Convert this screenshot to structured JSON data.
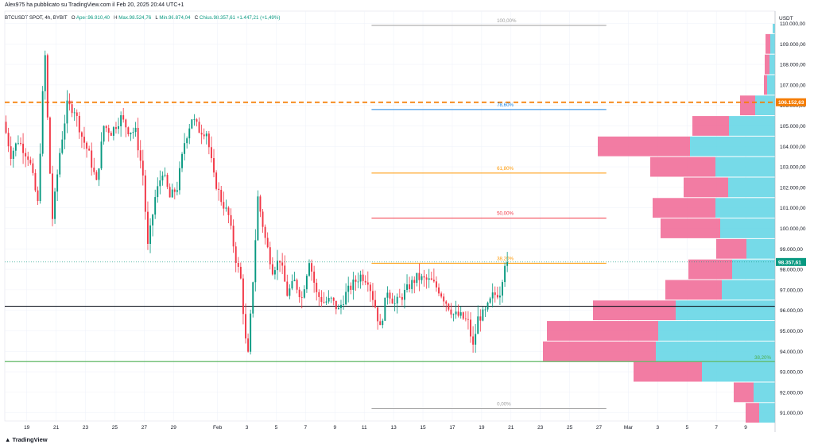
{
  "header": {
    "publisher": "Alex975 ha pubblicato su TradingView.com il Feb 20, 2025 20:44 UTC+1",
    "symbol": "BTCUSDT SPOT, 4h, BYBIT",
    "open_label": "O",
    "open": "Aper.96.910,40",
    "high_label": "H",
    "high": "Max.98.524,76",
    "low_label": "L",
    "low": "Min.96.874,04",
    "close_label": "C",
    "close": "Chius.98.357,61",
    "change": "+1.447,21 (+1,49%)"
  },
  "branding": "TradingView",
  "currency": "USDT",
  "colors": {
    "up": "#089981",
    "down": "#f23645",
    "vp_up": "#5ed3e4",
    "vp_down": "#f06593",
    "resistance": "#f57c00",
    "support": "#131722",
    "fib_green": "#4caf50"
  },
  "chart_data": {
    "type": "candlestick",
    "symbol": "BTCUSDT",
    "timeframe": "4h",
    "ylim": [
      90600,
      110600
    ],
    "y_ticks": [
      "91.000,00",
      "92.000,00",
      "93.000,00",
      "94.000,00",
      "95.000,00",
      "96.000,00",
      "97.000,00",
      "98.000,00",
      "99.000,00",
      "100.000,00",
      "101.000,00",
      "102.000,00",
      "103.000,00",
      "104.000,00",
      "105.000,00",
      "106.000,00",
      "107.000,00",
      "108.000,00",
      "109.000,00",
      "110.000,00"
    ],
    "y_tick_values": [
      91000,
      92000,
      93000,
      94000,
      95000,
      96000,
      97000,
      98000,
      99000,
      100000,
      101000,
      102000,
      103000,
      104000,
      105000,
      106000,
      107000,
      108000,
      109000,
      110000
    ],
    "x_ticks": [
      {
        "label": "19",
        "date": "2025-01-19"
      },
      {
        "label": "21",
        "date": "2025-01-21"
      },
      {
        "label": "23",
        "date": "2025-01-23"
      },
      {
        "label": "25",
        "date": "2025-01-25"
      },
      {
        "label": "27",
        "date": "2025-01-27"
      },
      {
        "label": "29",
        "date": "2025-01-29"
      },
      {
        "label": "Feb",
        "date": "2025-02-01"
      },
      {
        "label": "3",
        "date": "2025-02-03"
      },
      {
        "label": "5",
        "date": "2025-02-05"
      },
      {
        "label": "7",
        "date": "2025-02-07"
      },
      {
        "label": "9",
        "date": "2025-02-09"
      },
      {
        "label": "11",
        "date": "2025-02-11"
      },
      {
        "label": "13",
        "date": "2025-02-13"
      },
      {
        "label": "15",
        "date": "2025-02-15"
      },
      {
        "label": "17",
        "date": "2025-02-17"
      },
      {
        "label": "19",
        "date": "2025-02-19"
      },
      {
        "label": "21",
        "date": "2025-02-21"
      },
      {
        "label": "23",
        "date": "2025-02-23"
      },
      {
        "label": "25",
        "date": "2025-02-25"
      },
      {
        "label": "27",
        "date": "2025-02-27"
      },
      {
        "label": "Mar",
        "date": "2025-03-01"
      },
      {
        "label": "3",
        "date": "2025-03-03"
      },
      {
        "label": "5",
        "date": "2025-03-05"
      },
      {
        "label": "7",
        "date": "2025-03-07"
      },
      {
        "label": "9",
        "date": "2025-03-09"
      }
    ],
    "x_range": [
      "2025-01-17T12:00",
      "2025-03-11T00:00"
    ],
    "price_anchors": [
      [
        "2025-01-17T12:00",
        105200
      ],
      [
        "2025-01-18T00:00",
        103600
      ],
      [
        "2025-01-18T12:00",
        104300
      ],
      [
        "2025-01-19T06:00",
        103400
      ],
      [
        "2025-01-19T20:00",
        101200
      ],
      [
        "2025-01-20T04:00",
        106500
      ],
      [
        "2025-01-20T08:00",
        108400
      ],
      [
        "2025-01-20T14:00",
        103800
      ],
      [
        "2025-01-20T20:00",
        100500
      ],
      [
        "2025-01-21T08:00",
        103700
      ],
      [
        "2025-01-21T20:00",
        106000
      ],
      [
        "2025-01-22T08:00",
        105800
      ],
      [
        "2025-01-22T20:00",
        104500
      ],
      [
        "2025-01-23T08:00",
        103600
      ],
      [
        "2025-01-23T20:00",
        102200
      ],
      [
        "2025-01-24T08:00",
        105000
      ],
      [
        "2025-01-24T20:00",
        104700
      ],
      [
        "2025-01-25T12:00",
        105400
      ],
      [
        "2025-01-26T00:00",
        104800
      ],
      [
        "2025-01-26T12:00",
        104700
      ],
      [
        "2025-01-27T00:00",
        102600
      ],
      [
        "2025-01-27T08:00",
        99100
      ],
      [
        "2025-01-27T20:00",
        101500
      ],
      [
        "2025-01-28T08:00",
        102800
      ],
      [
        "2025-01-28T20:00",
        101500
      ],
      [
        "2025-01-29T08:00",
        102000
      ],
      [
        "2025-01-29T20:00",
        104200
      ],
      [
        "2025-01-30T08:00",
        105400
      ],
      [
        "2025-01-30T20:00",
        104800
      ],
      [
        "2025-01-31T08:00",
        104700
      ],
      [
        "2025-01-31T20:00",
        102500
      ],
      [
        "2025-02-01T08:00",
        101400
      ],
      [
        "2025-02-01T20:00",
        100600
      ],
      [
        "2025-02-02T08:00",
        98500
      ],
      [
        "2025-02-02T16:00",
        97500
      ],
      [
        "2025-02-03T00:00",
        94500
      ],
      [
        "2025-02-03T04:00",
        93800
      ],
      [
        "2025-02-03T12:00",
        97500
      ],
      [
        "2025-02-03T20:00",
        101500
      ],
      [
        "2025-02-04T08:00",
        99500
      ],
      [
        "2025-02-04T20:00",
        98000
      ],
      [
        "2025-02-05T08:00",
        98500
      ],
      [
        "2025-02-05T20:00",
        96800
      ],
      [
        "2025-02-06T08:00",
        97400
      ],
      [
        "2025-02-06T20:00",
        96600
      ],
      [
        "2025-02-07T08:00",
        98500
      ],
      [
        "2025-02-07T20:00",
        96800
      ],
      [
        "2025-02-08T08:00",
        96400
      ],
      [
        "2025-02-08T20:00",
        96500
      ],
      [
        "2025-02-09T08:00",
        96000
      ],
      [
        "2025-02-09T20:00",
        96800
      ],
      [
        "2025-02-10T08:00",
        97300
      ],
      [
        "2025-02-10T20:00",
        97700
      ],
      [
        "2025-02-11T08:00",
        97500
      ],
      [
        "2025-02-11T20:00",
        96200
      ],
      [
        "2025-02-12T04:00",
        95100
      ],
      [
        "2025-02-12T16:00",
        97000
      ],
      [
        "2025-02-13T04:00",
        96300
      ],
      [
        "2025-02-13T16:00",
        96700
      ],
      [
        "2025-02-14T04:00",
        97200
      ],
      [
        "2025-02-14T16:00",
        97600
      ],
      [
        "2025-02-15T04:00",
        97500
      ],
      [
        "2025-02-15T16:00",
        97400
      ],
      [
        "2025-02-16T04:00",
        97000
      ],
      [
        "2025-02-16T16:00",
        96400
      ],
      [
        "2025-02-17T04:00",
        95800
      ],
      [
        "2025-02-17T16:00",
        95700
      ],
      [
        "2025-02-18T04:00",
        95400
      ],
      [
        "2025-02-18T12:00",
        94200
      ],
      [
        "2025-02-18T20:00",
        95600
      ],
      [
        "2025-02-19T08:00",
        95900
      ],
      [
        "2025-02-19T20:00",
        96700
      ],
      [
        "2025-02-20T08:00",
        96900
      ],
      [
        "2025-02-20T16:00",
        98357.61
      ]
    ],
    "last_price": {
      "value": 98357.61,
      "label": "98.357,61"
    },
    "highlight_level": {
      "value": 106152.63,
      "label": "106.152,63"
    },
    "horizontal_levels": [
      {
        "name": "resistance",
        "value": 106152.63,
        "style": "dashed",
        "color": "#f57c00"
      },
      {
        "name": "support",
        "value": 96200,
        "style": "solid",
        "color": "#131722"
      },
      {
        "name": "support-low",
        "value": 93500,
        "style": "solid",
        "color": "#4caf50"
      }
    ],
    "fibonacci": {
      "from": "2025-02-11T12:00",
      "to": "2025-02-27T12:00",
      "levels": [
        {
          "label": "100,00%",
          "value": 109900,
          "color": "#9e9e9e"
        },
        {
          "label": "78,60%",
          "value": 105800,
          "color": "#1e88e5"
        },
        {
          "label": "61,80%",
          "value": 102700,
          "color": "#ff9800"
        },
        {
          "label": "50,00%",
          "value": 100500,
          "color": "#f23645"
        },
        {
          "label": "38,20%",
          "value": 98300,
          "color": "#ff9800"
        },
        {
          "label": "0,00%",
          "value": 91200,
          "color": "#9e9e9e"
        }
      ]
    },
    "volume_profile_right_label": {
      "label": "38,20%",
      "value": 93700
    },
    "volume_profile": [
      {
        "low": 109500,
        "high": 110000,
        "up": 3,
        "down": 0
      },
      {
        "low": 108500,
        "high": 109500,
        "up": 6,
        "down": 6
      },
      {
        "low": 107500,
        "high": 108500,
        "up": 7,
        "down": 6
      },
      {
        "low": 106500,
        "high": 107500,
        "up": 10,
        "down": 4
      },
      {
        "low": 105500,
        "high": 106500,
        "up": 25,
        "down": 19
      },
      {
        "low": 104500,
        "high": 105500,
        "up": 58,
        "down": 46
      },
      {
        "low": 103500,
        "high": 104500,
        "up": 107,
        "down": 116
      },
      {
        "low": 102500,
        "high": 103500,
        "up": 75,
        "down": 82
      },
      {
        "low": 101500,
        "high": 102500,
        "up": 59,
        "down": 56
      },
      {
        "low": 100500,
        "high": 101500,
        "up": 75,
        "down": 79
      },
      {
        "low": 99500,
        "high": 100500,
        "up": 69,
        "down": 75
      },
      {
        "low": 98500,
        "high": 99500,
        "up": 36,
        "down": 38
      },
      {
        "low": 97500,
        "high": 98500,
        "up": 54,
        "down": 55
      },
      {
        "low": 96500,
        "high": 97500,
        "up": 67,
        "down": 71
      },
      {
        "low": 95500,
        "high": 96500,
        "up": 125,
        "down": 104
      },
      {
        "low": 94500,
        "high": 95500,
        "up": 147,
        "down": 140
      },
      {
        "low": 93500,
        "high": 94500,
        "up": 150,
        "down": 142
      },
      {
        "low": 92500,
        "high": 93500,
        "up": 92,
        "down": 86
      },
      {
        "low": 91500,
        "high": 92500,
        "up": 27,
        "down": 25
      },
      {
        "low": 90500,
        "high": 91500,
        "up": 20,
        "down": 17
      }
    ]
  }
}
